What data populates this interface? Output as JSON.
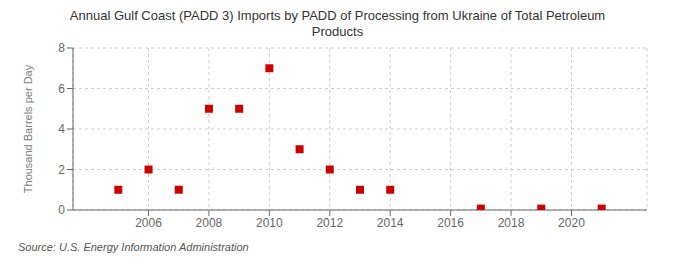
{
  "chart_data": {
    "type": "scatter",
    "title": "Annual Gulf Coast (PADD 3) Imports by PADD of Processing from Ukraine of Total Petroleum\nProducts",
    "ylabel": "Thousand Barrels per Day",
    "annotations": [
      "Source: U.S. Energy Information Administration"
    ],
    "x": [
      2005,
      2006,
      2007,
      2008,
      2009,
      2010,
      2011,
      2012,
      2013,
      2014,
      2017,
      2019,
      2021
    ],
    "values": [
      1.0,
      2.0,
      1.0,
      5.0,
      5.0,
      7.0,
      3.0,
      2.0,
      1.0,
      1.0,
      0.07,
      0.07,
      0.07
    ],
    "color": "#cc0000",
    "marker": "square",
    "xlim": [
      2003.5,
      2022.5
    ],
    "ylim": [
      0,
      8
    ],
    "xticks": [
      2006,
      2008,
      2010,
      2012,
      2014,
      2016,
      2018,
      2020
    ],
    "yticks": [
      0,
      2,
      4,
      6,
      8
    ],
    "grid": true
  }
}
